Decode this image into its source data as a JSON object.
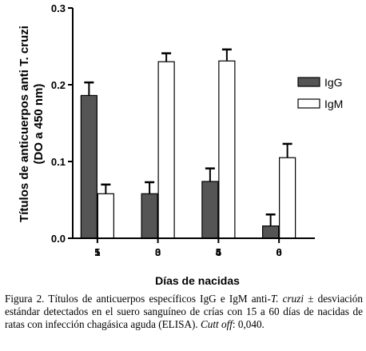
{
  "chart_data": {
    "type": "bar",
    "ylabel_line1": "Títulos de anticuerpos anti T. cruzi",
    "ylabel_line2": "(DO a 450 nm)",
    "xlabel": "Días de nacidas",
    "ylim": [
      0,
      0.3
    ],
    "yticks": [
      "0.0",
      "0.1",
      "0.2",
      "0.3"
    ],
    "categories": [
      "15",
      "30",
      "45",
      "60"
    ],
    "category_labels_as_printed": [
      "1​5",
      "3​0",
      "4​5",
      "6​0"
    ],
    "series": [
      {
        "name": "IgG",
        "values": [
          0.186,
          0.058,
          0.074,
          0.016
        ],
        "errors": [
          0.017,
          0.015,
          0.017,
          0.015
        ],
        "color": "#555555"
      },
      {
        "name": "IgM",
        "values": [
          0.058,
          0.23,
          0.231,
          0.105
        ],
        "errors": [
          0.012,
          0.011,
          0.015,
          0.018
        ],
        "color": "#ffffff"
      }
    ],
    "legend_position": "right",
    "grid": false
  },
  "caption": {
    "part1": "Figura 2. Títulos de anticuerpos específicos IgG e IgM anti-",
    "italic1": "T. cruzi",
    "part2": " ± desviación estándar detectados en el suero sanguíneo de crías con 15 a 60 días de nacidas de ratas con infección chagásica aguda (ELISA). ",
    "italic2": "Cutt off",
    "part3": ": 0,040."
  }
}
